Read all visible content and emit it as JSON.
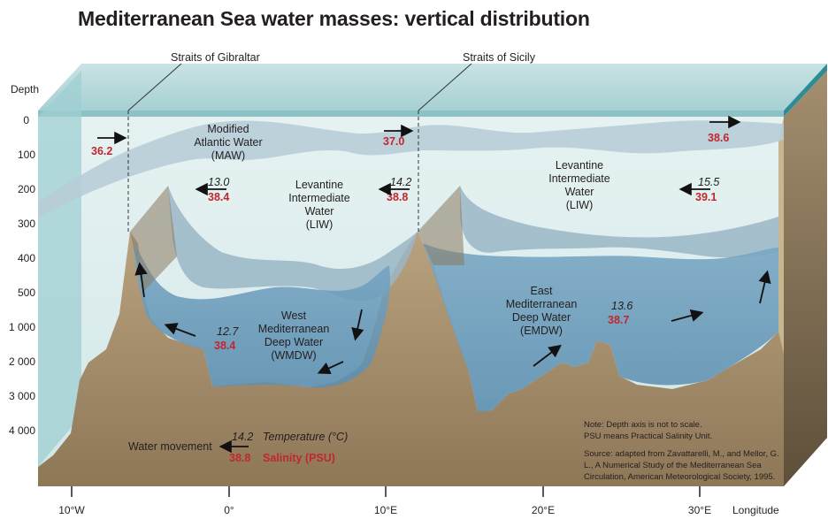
{
  "title": "Mediterranean Sea water masses: vertical distribution",
  "straits": {
    "gibraltar": "Straits of Gibraltar",
    "sicily": "Straits of Sicily"
  },
  "axis": {
    "depth_label": "Depth",
    "depth_ticks": [
      "0",
      "100",
      "200",
      "300",
      "400",
      "500",
      "1 000",
      "2 000",
      "3 000",
      "4 000"
    ],
    "longitude_label": "Longitude",
    "longitude_ticks": [
      "10°W",
      "0°",
      "10°E",
      "20°E",
      "30°E"
    ]
  },
  "water_masses": {
    "maw": [
      "Modified",
      "Atlantic Water",
      "(MAW)"
    ],
    "liw_west": [
      "Levantine",
      "Intermediate",
      "Water",
      "(LIW)"
    ],
    "liw_east": [
      "Levantine",
      "Intermediate",
      "Water",
      "(LIW)"
    ],
    "wmdw": [
      "West",
      "Mediterranean",
      "Deep Water",
      "(WMDW)"
    ],
    "emdw": [
      "East",
      "Mediterranean",
      "Deep Water",
      "(EMDW)"
    ]
  },
  "measurements": {
    "atlantic_salinity": "36.2",
    "maw_sicily_salinity": "37.0",
    "maw_east_salinity": "38.6",
    "liw_west_temp": "13.0",
    "liw_west_salinity": "38.4",
    "liw_sicily_temp": "14.2",
    "liw_sicily_salinity": "38.8",
    "liw_east_temp": "15.5",
    "liw_east_salinity": "39.1",
    "wmdw_temp": "12.7",
    "wmdw_salinity": "38.4",
    "emdw_temp": "13.6",
    "emdw_salinity": "38.7"
  },
  "legend": {
    "water_movement": "Water movement",
    "temp_example": "14.2",
    "temp_label": "Temperature (°C)",
    "sal_example": "38.8",
    "sal_label": "Salinity (PSU)"
  },
  "notes": {
    "note1": "Note: Depth axis is not to scale.",
    "note2": "PSU means Practical Salinity Unit.",
    "source1": "Source: adapted from Zavattarelli, M., and Mellor, G.",
    "source2": "L., A Numerical Study of the Mediterranean Sea",
    "source3": "Circulation, American Meteorological Society, 1995."
  },
  "colors": {
    "sea_surface": "#a9d4d6",
    "water": "#dfeeee",
    "maw_band": "#b8cdd7",
    "liw": "#9ab6c6",
    "deep_water": "#6e9fbe",
    "seabed": "#a38c6c",
    "salinity": "#c1272d",
    "top_edge": "#2e8c96"
  }
}
